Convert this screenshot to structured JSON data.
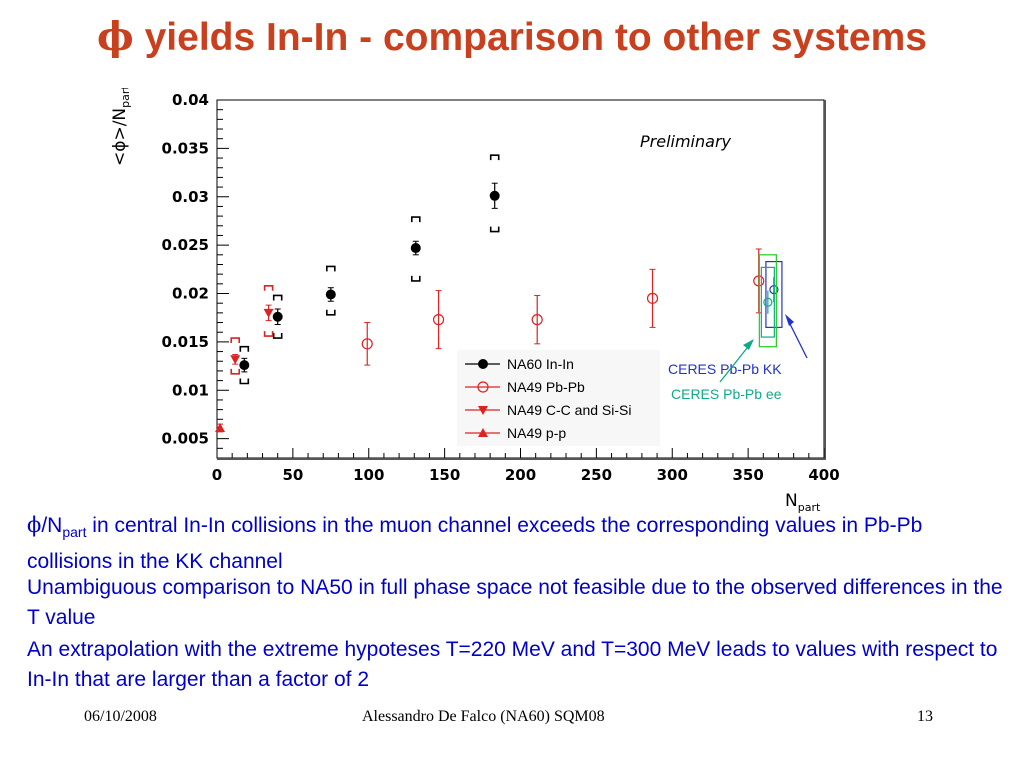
{
  "slide": {
    "title_symbol": "ϕ",
    "title_rest": " yields In-In - comparison to other systems"
  },
  "chart_data": {
    "type": "scatter",
    "ylabel": "<ϕ>/N",
    "ylabel_sub": "part",
    "xlabel": "N",
    "xlabel_sub": "part",
    "xlim": [
      0,
      400
    ],
    "ylim": [
      0.003,
      0.04
    ],
    "x_ticks": [
      "0",
      "50",
      "100",
      "150",
      "200",
      "250",
      "300",
      "350",
      "400"
    ],
    "y_ticks": [
      "0.005",
      "0.01",
      "0.015",
      "0.02",
      "0.025",
      "0.03",
      "0.035",
      "0.04"
    ],
    "annotation": "Preliminary",
    "series": [
      {
        "name": "NA60 In-In",
        "color": "#000000",
        "marker": "filled-circle",
        "points": [
          {
            "x": 18,
            "y": 0.0126,
            "err": 0.0007,
            "sys": [
              0.0107,
              0.0145
            ]
          },
          {
            "x": 40,
            "y": 0.0176,
            "err": 0.0008,
            "sys": [
              0.0154,
              0.0198
            ]
          },
          {
            "x": 75,
            "y": 0.0199,
            "err": 0.0007,
            "sys": [
              0.0178,
              0.0228
            ]
          },
          {
            "x": 131,
            "y": 0.0247,
            "err": 0.0007,
            "sys": [
              0.0213,
              0.0279
            ]
          },
          {
            "x": 183,
            "y": 0.0301,
            "err": 0.0013,
            "sys": [
              0.0264,
              0.0343
            ]
          }
        ]
      },
      {
        "name": "NA49 Pb-Pb",
        "color": "#dd2222",
        "marker": "open-circle",
        "points": [
          {
            "x": 99,
            "y": 0.0148,
            "err": 0.0022
          },
          {
            "x": 146,
            "y": 0.0173,
            "err": 0.003
          },
          {
            "x": 211,
            "y": 0.0173,
            "err": 0.0025
          },
          {
            "x": 287,
            "y": 0.0195,
            "err": 0.003
          },
          {
            "x": 357,
            "y": 0.0213,
            "err": 0.0033
          }
        ]
      },
      {
        "name": "NA49 C-C and Si-Si",
        "color": "#dd2222",
        "marker": "filled-triangle-down",
        "points": [
          {
            "x": 12,
            "y": 0.0132,
            "err": 0.0005,
            "sys": [
              0.0117,
              0.0154
            ]
          },
          {
            "x": 34,
            "y": 0.018,
            "err": 0.0008,
            "sys": [
              0.0156,
              0.0208
            ]
          }
        ]
      },
      {
        "name": "NA49 p-p",
        "color": "#dd2222",
        "marker": "filled-triangle-up",
        "points": [
          {
            "x": 2,
            "y": 0.0061,
            "err": 0.0004
          }
        ]
      }
    ],
    "ceres": [
      {
        "label": "CERES Pb-Pb KK",
        "color": "#2233cc",
        "x": 367,
        "y": 0.0204,
        "err": 0.0013,
        "box": [
          0.0165,
          0.0233
        ]
      },
      {
        "label": "CERES Pb-Pb ee",
        "color": "#11aa88",
        "x": 363,
        "y": 0.0191,
        "err": 0.0012,
        "box": [
          0.0155,
          0.0227
        ]
      },
      {
        "color": "#22cc22",
        "x": 363,
        "y": 0.0191,
        "box": [
          0.0145,
          0.024
        ]
      }
    ],
    "grid": false,
    "legend_position": "bottom-right"
  },
  "text": {
    "para1_sym": "ϕ",
    "para1_n": "/N",
    "para1_sub": "part",
    "para1_rest": " in central In-In collisions in the muon channel exceeds the corresponding values in Pb-Pb collisions in the KK channel",
    "para2": "Unambiguous comparison to NA50 in full phase space not feasible due to the observed differences in the T value",
    "para3": "An extrapolation with the extreme hypoteses T=220 MeV and T=300 MeV leads to values with respect to In-In that are larger than a factor of 2"
  },
  "footer": {
    "date": "06/10/2008",
    "author": "Alessandro De Falco (NA60) SQM08",
    "page": "13"
  }
}
